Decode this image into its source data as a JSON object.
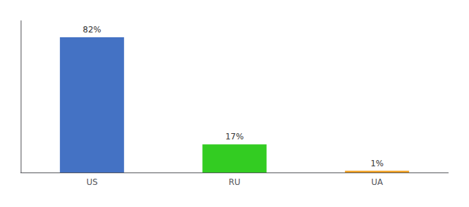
{
  "chart_data": {
    "type": "bar",
    "categories": [
      "US",
      "RU",
      "UA"
    ],
    "values": [
      82,
      17,
      1
    ],
    "value_labels": [
      "82%",
      "17%",
      "1%"
    ],
    "colors": [
      "#4472c4",
      "#33cc22",
      "#f0a020"
    ],
    "ylim": [
      0,
      92
    ],
    "grid": false,
    "data_labels": true,
    "tick_labels": "x"
  }
}
